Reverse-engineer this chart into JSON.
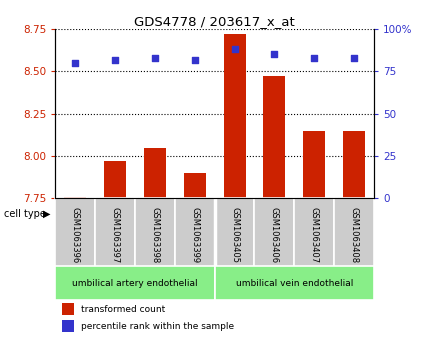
{
  "title": "GDS4778 / 203617_x_at",
  "samples": [
    "GSM1063396",
    "GSM1063397",
    "GSM1063398",
    "GSM1063399",
    "GSM1063405",
    "GSM1063406",
    "GSM1063407",
    "GSM1063408"
  ],
  "transformed_counts": [
    7.76,
    7.97,
    8.05,
    7.9,
    8.72,
    8.47,
    8.15,
    8.15
  ],
  "percentile_ranks": [
    80,
    82,
    83,
    82,
    88,
    85,
    83,
    83
  ],
  "ylim_left": [
    7.75,
    8.75
  ],
  "ylim_right": [
    0,
    100
  ],
  "yticks_left": [
    7.75,
    8.0,
    8.25,
    8.5,
    8.75
  ],
  "yticks_right": [
    0,
    25,
    50,
    75,
    100
  ],
  "bar_color": "#cc2200",
  "dot_color": "#3333cc",
  "bar_width": 0.55,
  "artery_label": "umbilical artery endothelial",
  "vein_label": "umbilical vein endothelial",
  "cell_type_group_color": "#88ee88",
  "sample_box_color": "#cccccc",
  "cell_type_label": "cell type",
  "legend_bar_label": "transformed count",
  "legend_dot_label": "percentile rank within the sample",
  "label_color_left": "#cc2200",
  "label_color_right": "#3333cc",
  "n_artery": 4,
  "n_vein": 4
}
